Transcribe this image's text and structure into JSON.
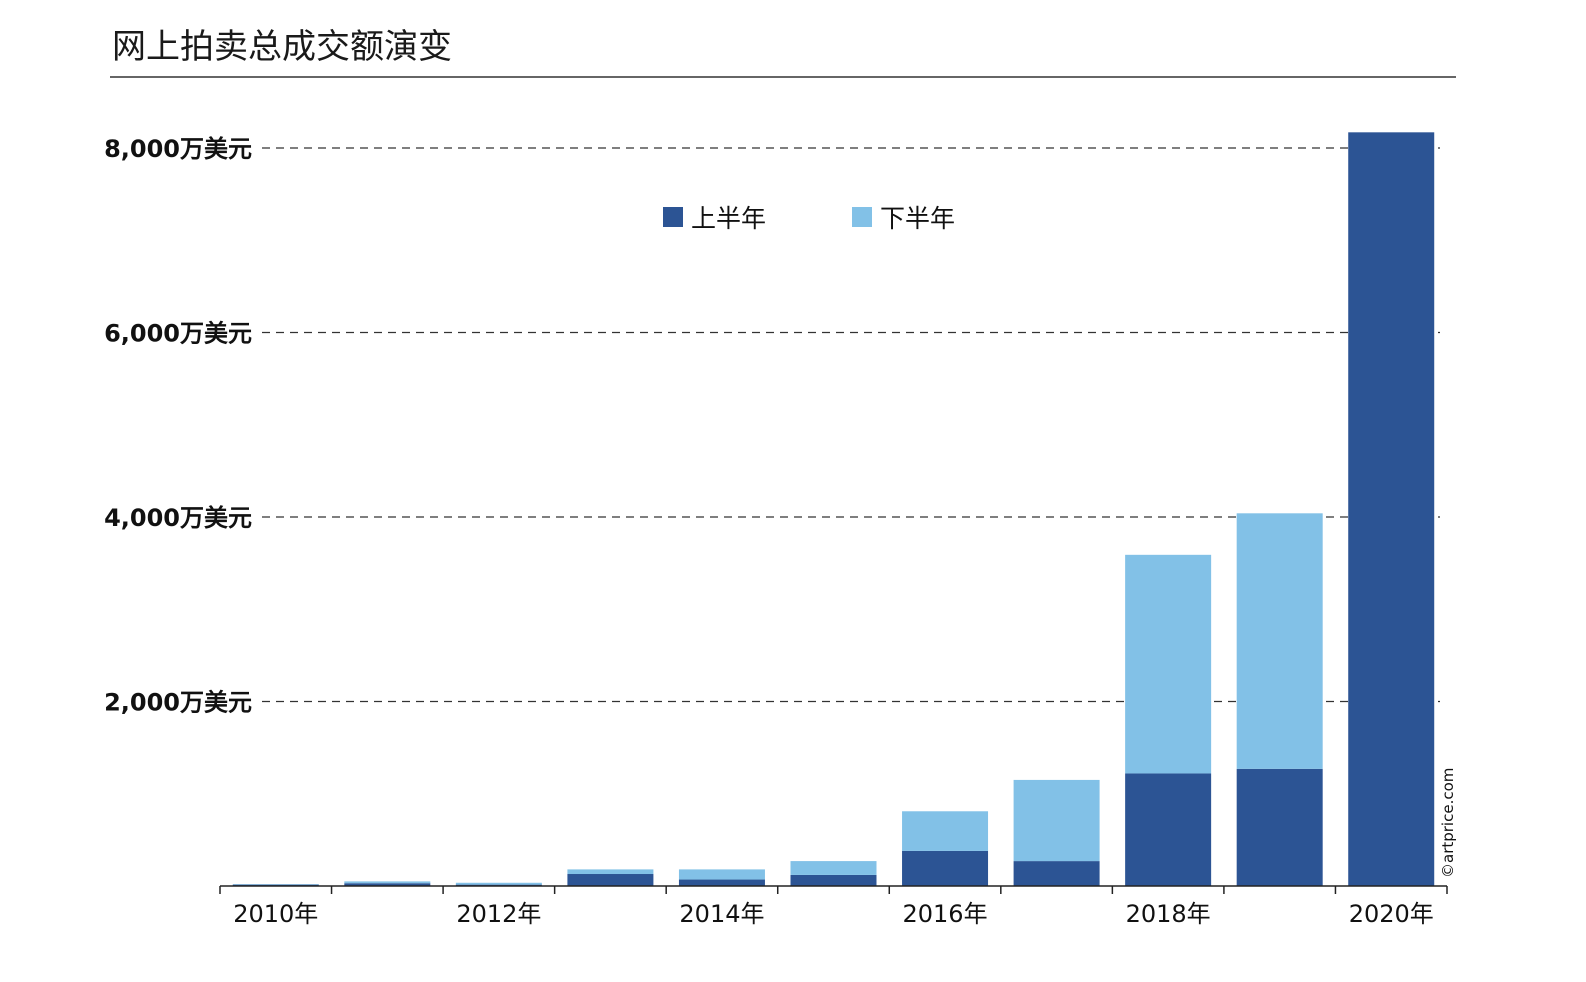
{
  "chart_data": {
    "type": "bar",
    "stacked": true,
    "title": "网上拍卖总成交额演变",
    "categories": [
      2010,
      2011,
      2012,
      2013,
      2014,
      2015,
      2016,
      2017,
      2018,
      2019,
      2020
    ],
    "x_tick_labels": [
      "2010年",
      "2012年",
      "2014年",
      "2016年",
      "2018年",
      "2020年"
    ],
    "y_tick_values": [
      2000,
      4000,
      6000,
      8000
    ],
    "y_tick_labels": [
      "2,000万美元",
      "4,000万美元",
      "6,000万美元",
      "8,000万美元"
    ],
    "ylim": [
      0,
      8000
    ],
    "unit": "万美元",
    "grid": "horizontal dashed",
    "legend_position": "top-center",
    "series": [
      {
        "name": "上半年",
        "color": "#2c5494",
        "values": [
          15,
          30,
          15,
          130,
          70,
          120,
          380,
          270,
          1220,
          1270,
          8170
        ]
      },
      {
        "name": "下半年",
        "color": "#82c1e7",
        "values": [
          5,
          20,
          20,
          50,
          110,
          150,
          430,
          880,
          2370,
          2770,
          0
        ]
      }
    ],
    "credit": "©artprice.com"
  }
}
